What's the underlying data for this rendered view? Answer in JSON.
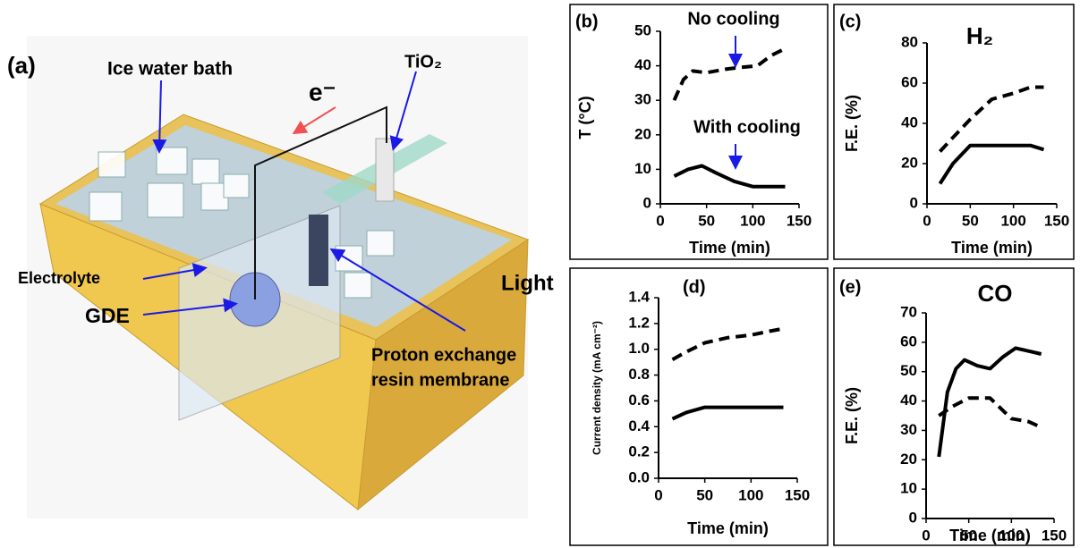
{
  "diagram": {
    "panel_label": "(a)",
    "ice_bath": "Ice water bath",
    "electron": "e⁻",
    "tio2": "TiO₂",
    "electrolyte": "Electrolyte",
    "gde": "GDE",
    "light": "Light",
    "membrane": [
      "Proton exchange",
      "resin membrane"
    ]
  },
  "chart_data": [
    {
      "type": "line",
      "panel_label": "(b)",
      "xlabel": "Time (min)",
      "ylabel": "T (°C)",
      "xlim": [
        0,
        150
      ],
      "xticks": [
        0,
        50,
        100,
        150
      ],
      "ylim": [
        0,
        50
      ],
      "yticks": [
        0,
        10,
        20,
        30,
        40,
        50
      ],
      "series": [
        {
          "name": "No cooling",
          "color": "#000000",
          "line_style": "dashed",
          "x": [
            15,
            25,
            35,
            50,
            70,
            85,
            105,
            120,
            135
          ],
          "values": [
            30,
            36,
            38.5,
            38,
            39,
            39.5,
            40,
            43,
            45
          ]
        },
        {
          "name": "With cooling",
          "color": "#000000",
          "line_style": "solid",
          "x": [
            15,
            30,
            45,
            60,
            80,
            100,
            115,
            135
          ],
          "values": [
            8,
            10,
            11,
            9,
            6.5,
            5,
            5,
            5
          ]
        }
      ]
    },
    {
      "type": "line",
      "panel_label": "(c)",
      "title": "H₂",
      "xlabel": "Time (min)",
      "ylabel": "F.E. (%)",
      "xlim": [
        0,
        150
      ],
      "xticks": [
        0,
        50,
        100,
        150
      ],
      "ylim": [
        0,
        80
      ],
      "yticks": [
        0,
        20,
        40,
        60,
        80
      ],
      "series": [
        {
          "color": "#000000",
          "line_style": "dashed",
          "x": [
            15,
            30,
            50,
            75,
            100,
            120,
            135
          ],
          "values": [
            26,
            33,
            42,
            52,
            55,
            58,
            58
          ]
        },
        {
          "color": "#000000",
          "line_style": "solid",
          "x": [
            15,
            30,
            50,
            75,
            100,
            120,
            135
          ],
          "values": [
            10,
            20,
            29,
            29,
            29,
            29,
            27
          ]
        }
      ]
    },
    {
      "type": "line",
      "panel_label": "(d)",
      "xlabel": "Time (min)",
      "ylabel": "Current density (mA cm⁻²)",
      "xlim": [
        0,
        150
      ],
      "xticks": [
        0,
        50,
        100,
        150
      ],
      "ylim": [
        0,
        1.4
      ],
      "yticks": [
        {
          "value": 0,
          "label": "0.0"
        },
        0.2,
        0.4,
        0.6,
        0.8,
        {
          "value": 1,
          "label": "1.0"
        },
        1.2,
        1.4
      ],
      "series": [
        {
          "color": "#000000",
          "line_style": "dashed",
          "x": [
            15,
            30,
            50,
            75,
            100,
            120,
            135
          ],
          "values": [
            0.92,
            0.98,
            1.05,
            1.09,
            1.11,
            1.14,
            1.16
          ]
        },
        {
          "color": "#000000",
          "line_style": "solid",
          "x": [
            15,
            30,
            50,
            75,
            100,
            120,
            135
          ],
          "values": [
            0.46,
            0.51,
            0.55,
            0.55,
            0.55,
            0.55,
            0.55
          ]
        }
      ]
    },
    {
      "type": "line",
      "panel_label": "(e)",
      "title": "CO",
      "xlabel": "Time (min)",
      "ylabel": "F.E. (%)",
      "xlim": [
        0,
        150
      ],
      "xticks": [
        0,
        50,
        100,
        150
      ],
      "ylim": [
        0,
        70
      ],
      "yticks": [
        0,
        10,
        20,
        30,
        40,
        50,
        60,
        70
      ],
      "series": [
        {
          "color": "#000000",
          "line_style": "solid",
          "x": [
            15,
            25,
            35,
            45,
            60,
            75,
            90,
            105,
            120,
            135
          ],
          "values": [
            21,
            43,
            51,
            54,
            52,
            51,
            55,
            58,
            57,
            56
          ]
        },
        {
          "color": "#000000",
          "line_style": "dashed",
          "x": [
            15,
            30,
            50,
            75,
            100,
            120,
            135
          ],
          "values": [
            35,
            38,
            41,
            41,
            34,
            33,
            31
          ]
        }
      ]
    }
  ]
}
